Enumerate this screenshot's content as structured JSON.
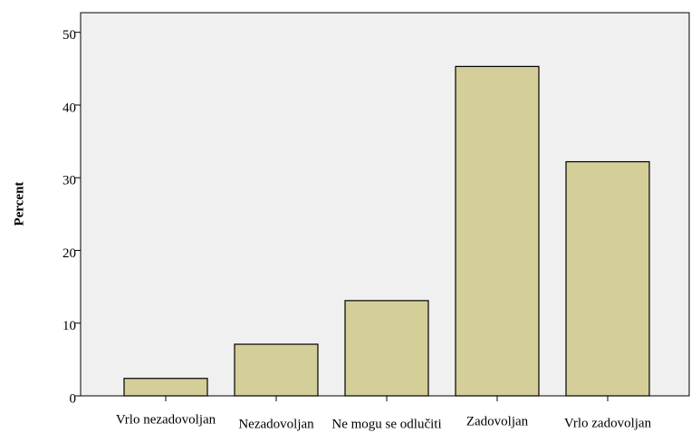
{
  "chart_data": {
    "type": "bar",
    "y_label": "Percent",
    "categories": [
      "Vrlo nezadovoljan",
      "Nezadovoljan",
      "Ne mogu se odlučiti",
      "Zadovoljan",
      "Vrlo zadovoljan"
    ],
    "values": [
      2.4,
      7.1,
      13.1,
      45.3,
      32.2
    ],
    "color": "#d4cf98",
    "ylim": [
      0,
      52.7
    ],
    "yticks": [
      0,
      10,
      20,
      30,
      40,
      50
    ],
    "grid": false
  }
}
